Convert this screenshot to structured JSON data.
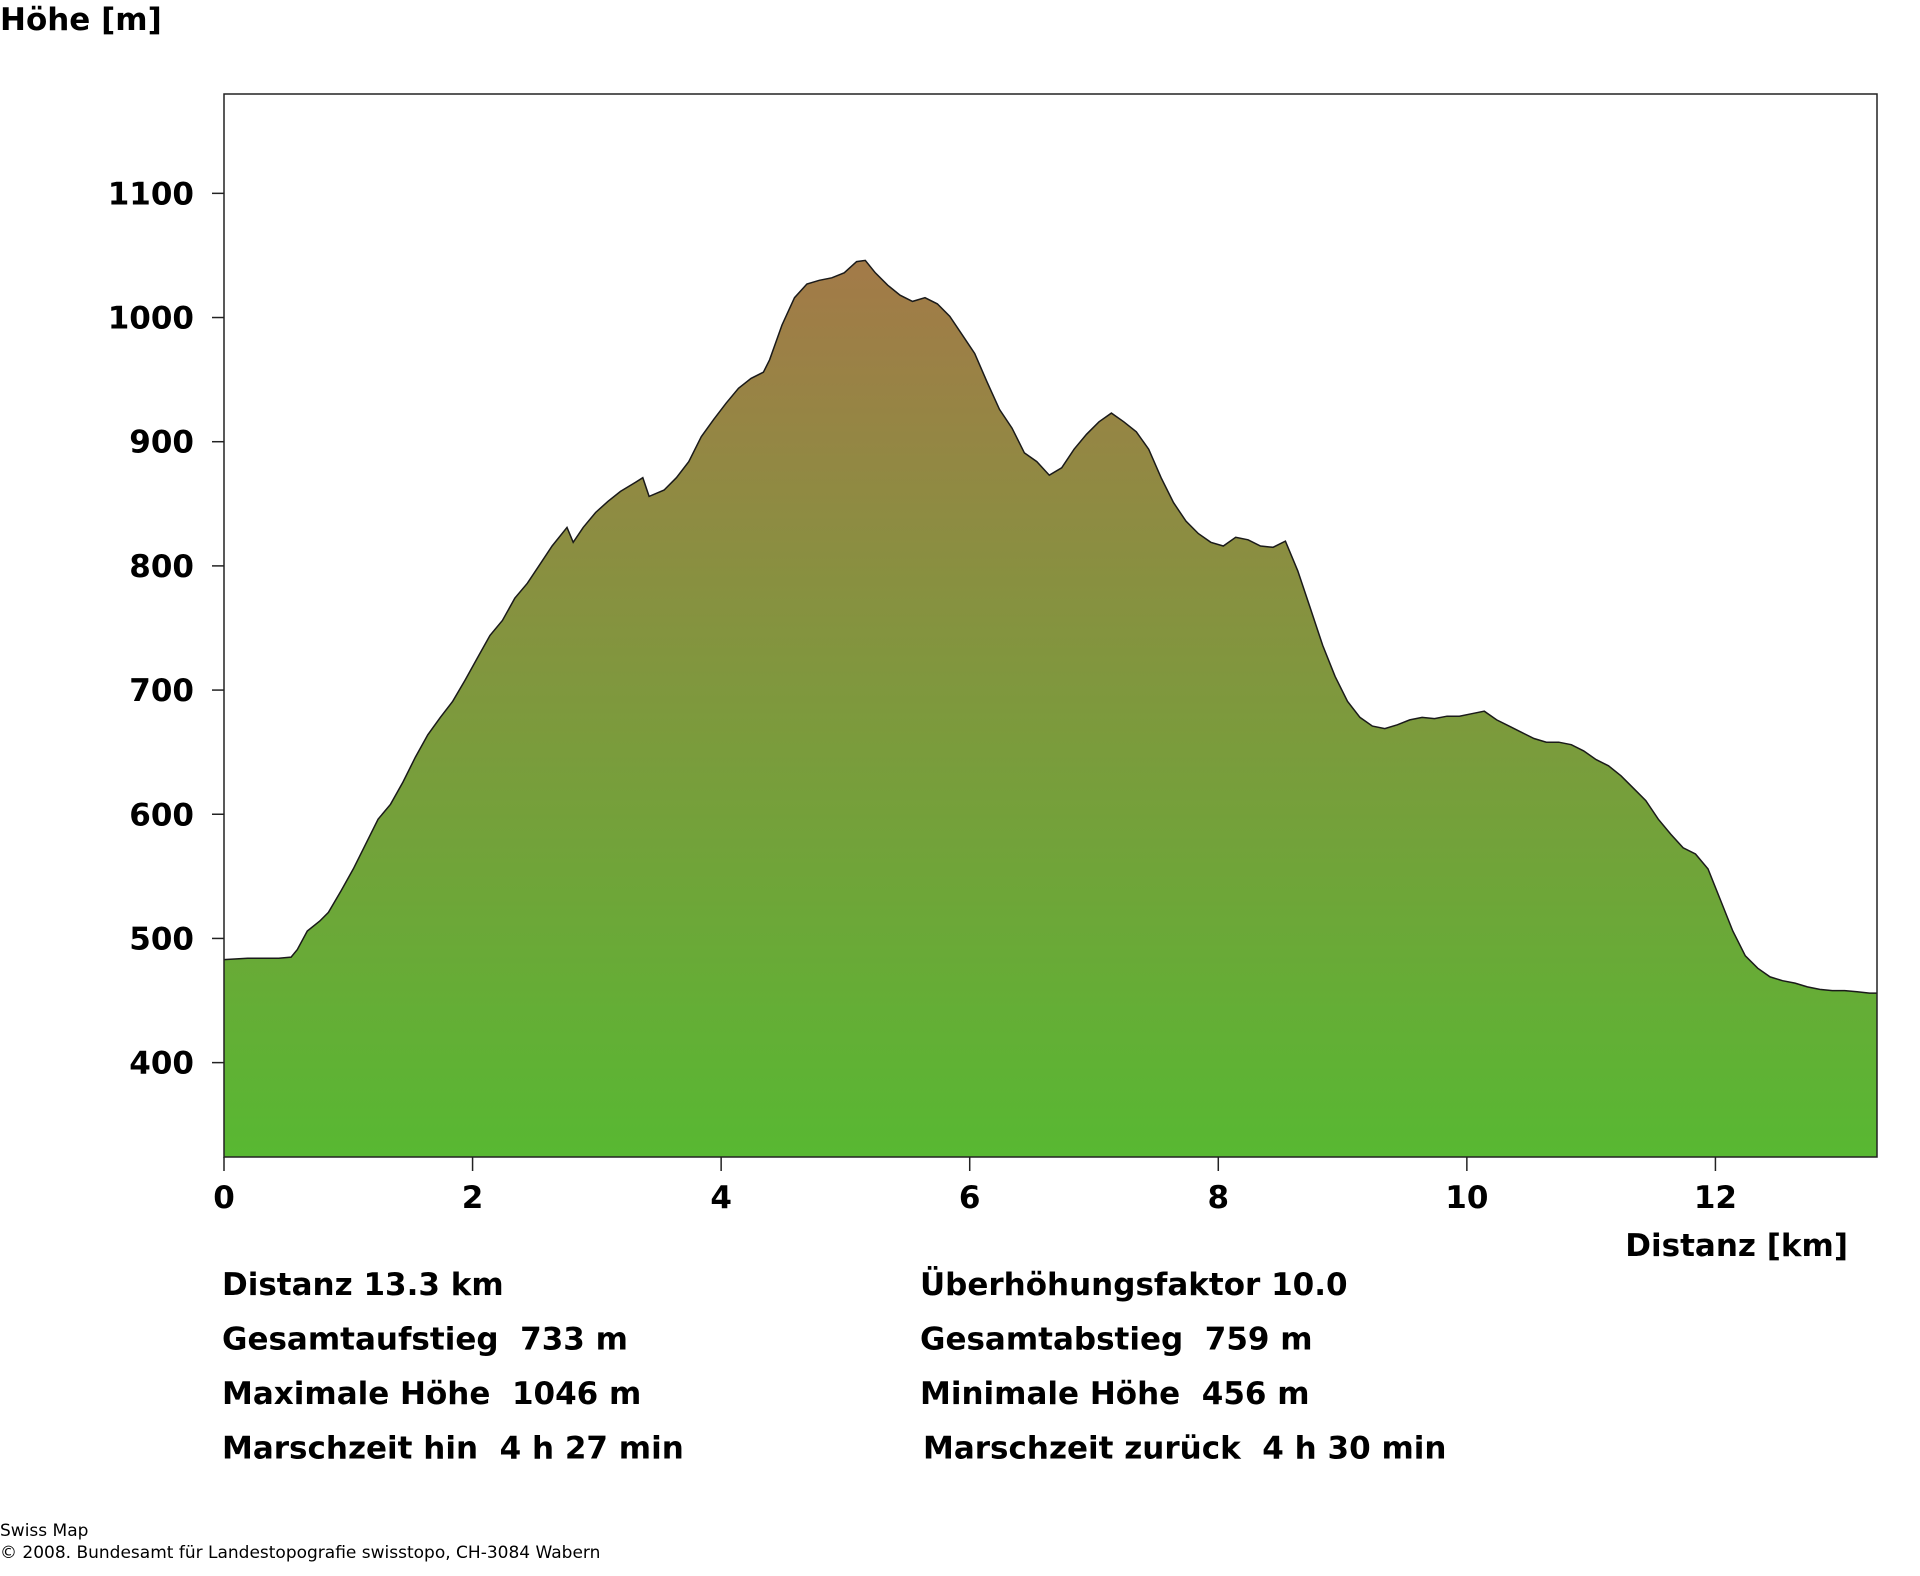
{
  "chart_data": {
    "type": "area",
    "ylabel": "Höhe [m]",
    "xlabel": "Distanz [km]",
    "xlim": [
      0,
      13.3
    ],
    "ylim": [
      324,
      1180
    ],
    "xticks": [
      0,
      2,
      4,
      6,
      8,
      10,
      12
    ],
    "yticks": [
      400,
      500,
      600,
      700,
      800,
      900,
      1000,
      1100
    ],
    "color_top": "#a37a48",
    "color_bottom": "#58b832",
    "x": [
      0,
      0.19,
      0.44,
      0.54,
      0.59,
      0.67,
      0.77,
      0.84,
      0.94,
      1.04,
      1.14,
      1.24,
      1.34,
      1.44,
      1.54,
      1.64,
      1.74,
      1.84,
      1.94,
      2.04,
      2.14,
      2.24,
      2.34,
      2.44,
      2.54,
      2.64,
      2.76,
      2.81,
      2.89,
      2.99,
      3.09,
      3.19,
      3.29,
      3.37,
      3.42,
      3.54,
      3.64,
      3.74,
      3.84,
      3.94,
      4.04,
      4.14,
      4.24,
      4.34,
      4.39,
      4.49,
      4.59,
      4.69,
      4.79,
      4.89,
      4.99,
      5.09,
      5.16,
      5.24,
      5.34,
      5.44,
      5.54,
      5.64,
      5.74,
      5.84,
      5.94,
      6.04,
      6.14,
      6.24,
      6.34,
      6.44,
      6.54,
      6.64,
      6.74,
      6.84,
      6.94,
      7.04,
      7.14,
      7.24,
      7.34,
      7.44,
      7.54,
      7.64,
      7.74,
      7.84,
      7.94,
      8.04,
      8.14,
      8.24,
      8.34,
      8.44,
      8.54,
      8.64,
      8.74,
      8.84,
      8.94,
      9.04,
      9.14,
      9.24,
      9.34,
      9.44,
      9.54,
      9.64,
      9.74,
      9.84,
      9.94,
      10.04,
      10.14,
      10.24,
      10.34,
      10.44,
      10.54,
      10.64,
      10.74,
      10.84,
      10.94,
      11.04,
      11.14,
      11.24,
      11.34,
      11.44,
      11.54,
      11.64,
      11.74,
      11.84,
      11.94,
      12.04,
      12.14,
      12.24,
      12.34,
      12.44,
      12.54,
      12.64,
      12.74,
      12.84,
      12.94,
      13.04,
      13.14,
      13.24,
      13.3
    ],
    "values": [
      483,
      484,
      484,
      485,
      491,
      506,
      514,
      521,
      538,
      556,
      576,
      596,
      608,
      626,
      646,
      664,
      678,
      691,
      708,
      726,
      744,
      756,
      774,
      786,
      801,
      816,
      831,
      819,
      831,
      843,
      852,
      860,
      866,
      871,
      856,
      861,
      871,
      884,
      904,
      918,
      931,
      943,
      951,
      956,
      966,
      994,
      1016,
      1027,
      1030,
      1032,
      1036,
      1045,
      1046,
      1036,
      1026,
      1018,
      1013,
      1016,
      1011,
      1001,
      986,
      971,
      948,
      926,
      911,
      891,
      884,
      873,
      879,
      894,
      906,
      916,
      923,
      916,
      908,
      894,
      871,
      851,
      836,
      826,
      819,
      816,
      823,
      821,
      816,
      815,
      820,
      796,
      766,
      736,
      711,
      691,
      678,
      671,
      669,
      672,
      676,
      678,
      677,
      679,
      679,
      681,
      683,
      676,
      671,
      666,
      661,
      658,
      658,
      656,
      651,
      644,
      639,
      631,
      621,
      611,
      596,
      584,
      573,
      568,
      556,
      531,
      506,
      486,
      476,
      469,
      466,
      464,
      461,
      459,
      458,
      458,
      457,
      456,
      456
    ]
  },
  "stats": [
    "Distanz 13.3 km",
    "Überhöhungsfaktor 10.0",
    "Gesamtaufstieg  733 m",
    "Gesamtabstieg  759 m",
    "Maximale Höhe  1046 m",
    "Minimale Höhe  456 m",
    "Marschzeit hin  4 h 27 min",
    "Marschzeit zurück  4 h 30 min"
  ],
  "footer": [
    "Swiss Map",
    "© 2008. Bundesamt für Landestopografie swisstopo, CH-3084 Wabern"
  ]
}
